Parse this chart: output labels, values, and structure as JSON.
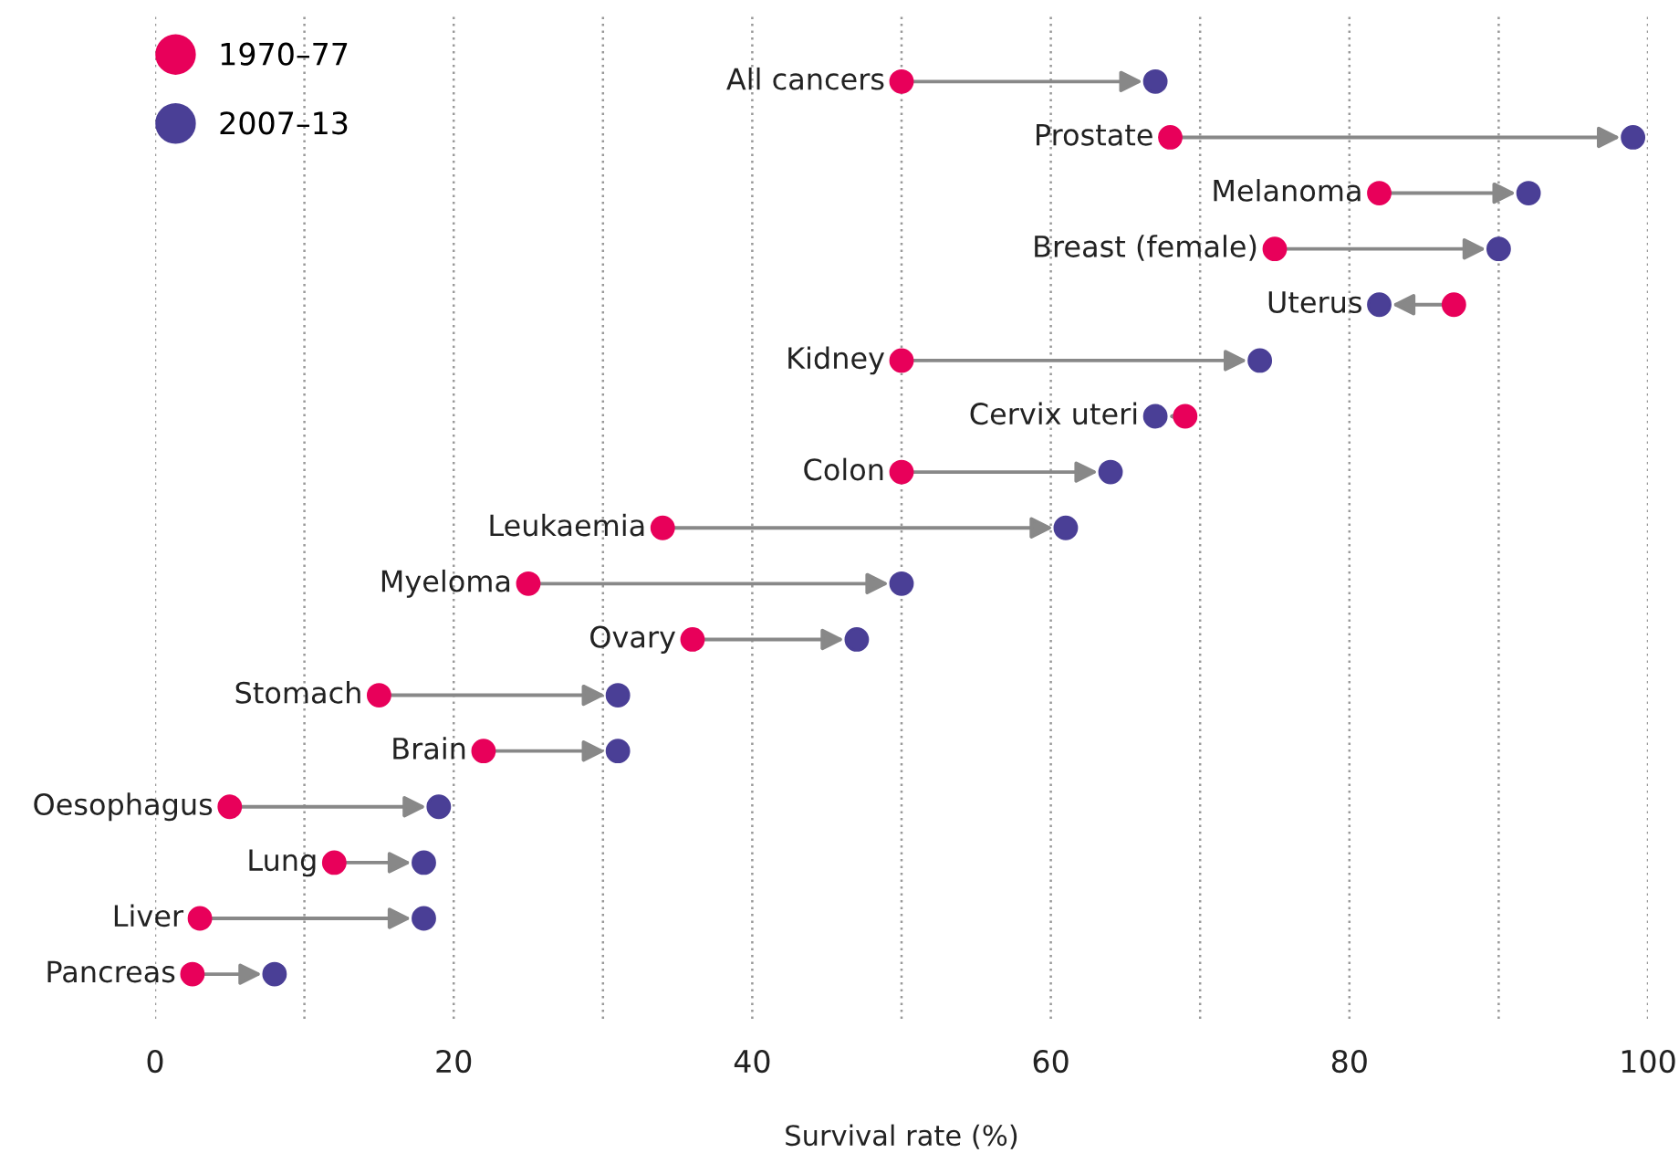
{
  "chart_data": {
    "type": "scatter",
    "orientation": "horizontal",
    "xlabel": "Survival rate (%)",
    "categories": [
      "All cancers",
      "Prostate",
      "Melanoma",
      "Breast (female)",
      "Uterus",
      "Kidney",
      "Cervix uteri",
      "Colon",
      "Leukaemia",
      "Myeloma",
      "Ovary",
      "Stomach",
      "Brain",
      "Oesophagus",
      "Lung",
      "Liver",
      "Pancreas"
    ],
    "series": [
      {
        "name": "1970–77",
        "color": "#e8005a",
        "values": [
          50,
          68,
          82,
          75,
          87,
          50,
          69,
          50,
          34,
          25,
          36,
          15,
          22,
          5,
          12,
          3,
          2.5
        ]
      },
      {
        "name": "2007–13",
        "color": "#4a3f96",
        "values": [
          67,
          99,
          92,
          90,
          82,
          74,
          67,
          64,
          61,
          50,
          47,
          31,
          31,
          19,
          18,
          18,
          8
        ]
      }
    ],
    "xlim": [
      0,
      100
    ],
    "xticks": [
      0,
      {
        "value": 10,
        "label": null
      },
      20,
      {
        "value": 30,
        "label": null
      },
      40,
      {
        "value": 50,
        "label": null
      },
      60,
      {
        "value": 70,
        "label": null
      },
      80,
      {
        "value": 90,
        "label": null
      },
      100
    ],
    "grid": "x",
    "legend": "top left",
    "marker": "circle",
    "tick_labels": "x"
  }
}
